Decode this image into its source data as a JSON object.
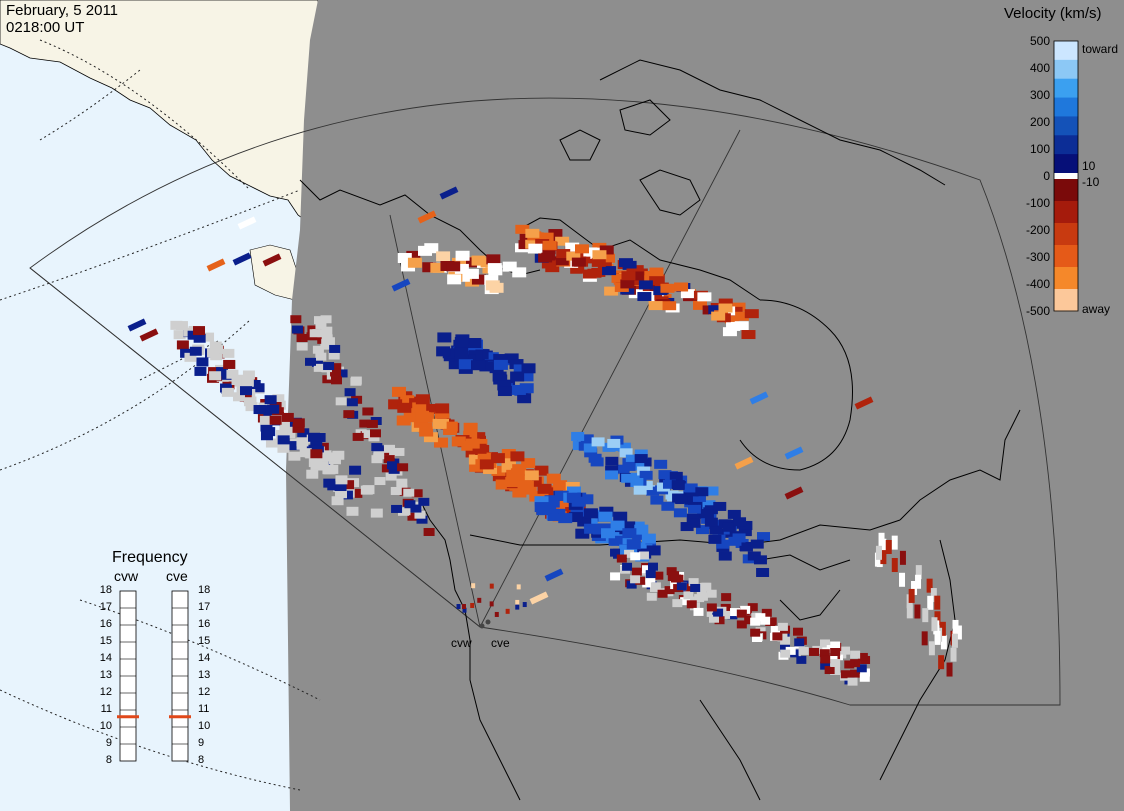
{
  "header": {
    "date": "February, 5 2011",
    "time": "0218:00 UT"
  },
  "colorbar": {
    "title": "Velocity (km/s)",
    "ticks": [
      "500",
      "400",
      "300",
      "200",
      "100",
      "0",
      "-100",
      "-200",
      "-300",
      "-400",
      "-500"
    ],
    "inner_ticks": [
      "10",
      "-10"
    ],
    "toward_label": "toward",
    "away_label": "away",
    "colors": [
      "#cce6ff",
      "#8cc8f5",
      "#3ba0f0",
      "#1f78dc",
      "#1452b8",
      "#0c2d96",
      "#060f78",
      "#ffffff",
      "#7a0a0a",
      "#a51b0c",
      "#c83a10",
      "#e55a18",
      "#f5882a",
      "#fcc89a"
    ]
  },
  "frequency": {
    "title": "Frequency",
    "radars": [
      "cvw",
      "cve"
    ],
    "levels": [
      "18",
      "17",
      "16",
      "15",
      "14",
      "13",
      "12",
      "11",
      "10",
      "9",
      "8"
    ],
    "current_mhz": [
      10.6,
      10.6
    ],
    "marker_color": "#e0481a"
  },
  "map": {
    "ocean_color": "#e8f4fd",
    "land_color": "#f7f4e6",
    "dark_side_color": "#8e8e8e",
    "sites": [
      "cvw",
      "cve"
    ]
  }
}
